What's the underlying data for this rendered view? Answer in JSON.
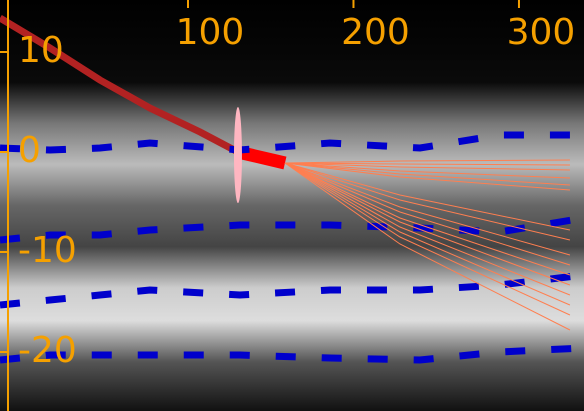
{
  "chart_data": {
    "type": "line",
    "xlim": [
      -13.6,
      339.3
    ],
    "ylim": [
      -25.9,
      15.2
    ],
    "xticks": [
      100,
      200,
      300
    ],
    "yticks": [
      10,
      0,
      -10,
      -20
    ],
    "axis_color": "#f5a000",
    "series": [
      {
        "color": "#b22222",
        "width": 7,
        "dashed": false,
        "x": [
          -13.6,
          16.6,
          46.8,
          77.0,
          107.3,
          130.2
        ],
        "values": [
          13.4,
          10.4,
          7.2,
          4.4,
          2.0,
          0
        ]
      },
      {
        "color": "#ff0000",
        "width": 13,
        "dashed": false,
        "x": [
          130.2,
          158.6
        ],
        "values": [
          0,
          -1.1
        ]
      },
      {
        "color": "#0000cc",
        "width": 7,
        "dashed": true,
        "x": [
          -13.6,
          16.6,
          46.8,
          77.0,
          131.4,
          185.8,
          240.2,
          288.4,
          339.3
        ],
        "values": [
          0.4,
          0.2,
          0.4,
          0.9,
          0.2,
          0.9,
          0.4,
          1.7,
          1.7
        ]
      },
      {
        "color": "#0000cc",
        "width": 7,
        "dashed": true,
        "x": [
          -13.6,
          16.6,
          46.8,
          77.0,
          131.4,
          185.8,
          240.2,
          288.4,
          339.3
        ],
        "values": [
          -8.8,
          -8.3,
          -8.3,
          -7.8,
          -7.3,
          -7.3,
          -7.6,
          -8.0,
          -6.6
        ]
      },
      {
        "color": "#0000cc",
        "width": 7,
        "dashed": true,
        "x": [
          -13.6,
          16.6,
          46.8,
          77.0,
          131.4,
          185.8,
          240.2,
          288.4,
          339.3
        ],
        "values": [
          -15.3,
          -14.8,
          -14.3,
          -13.8,
          -14.3,
          -13.8,
          -13.8,
          -13.3,
          -12.3
        ]
      },
      {
        "color": "#0000cc",
        "width": 7,
        "dashed": true,
        "x": [
          -13.6,
          16.6,
          46.8,
          77.0,
          131.4,
          185.8,
          240.2,
          288.4,
          339.3
        ],
        "values": [
          -20.8,
          -20.3,
          -20.3,
          -20.3,
          -20.3,
          -20.6,
          -20.8,
          -20.0,
          -19.6
        ]
      },
      {
        "color": "#ff7f50",
        "width": 1,
        "dashed": false,
        "x": [
          158.6,
          228.1,
          330.8
        ],
        "values": [
          -1.1,
          -0.9,
          -0.8
        ]
      },
      {
        "color": "#ff7f50",
        "width": 1,
        "dashed": false,
        "x": [
          158.6,
          228.1,
          330.8
        ],
        "values": [
          -1.1,
          -1.2,
          -1.3
        ]
      },
      {
        "color": "#ff7f50",
        "width": 1,
        "dashed": false,
        "x": [
          158.6,
          228.1,
          330.8
        ],
        "values": [
          -1.1,
          -1.5,
          -1.8
        ]
      },
      {
        "color": "#ff7f50",
        "width": 1,
        "dashed": false,
        "x": [
          158.6,
          228.1,
          330.8
        ],
        "values": [
          -1.1,
          -1.9,
          -2.6
        ]
      },
      {
        "color": "#ff7f50",
        "width": 1,
        "dashed": false,
        "x": [
          158.6,
          228.1,
          330.8
        ],
        "values": [
          -1.1,
          -2.2,
          -3.3
        ]
      },
      {
        "color": "#ff7f50",
        "width": 1,
        "dashed": false,
        "x": [
          158.6,
          228.1,
          330.8
        ],
        "values": [
          -1.1,
          -2.5,
          -3.8
        ]
      },
      {
        "color": "#ff7f50",
        "width": 1,
        "dashed": false,
        "x": [
          158.6,
          228.1,
          330.8
        ],
        "values": [
          -1.1,
          -4.3,
          -7.8
        ]
      },
      {
        "color": "#ff7f50",
        "width": 1,
        "dashed": false,
        "x": [
          158.6,
          228.1,
          330.8
        ],
        "values": [
          -1.1,
          -4.8,
          -8.8
        ]
      },
      {
        "color": "#ff7f50",
        "width": 1,
        "dashed": false,
        "x": [
          158.6,
          228.1,
          330.8
        ],
        "values": [
          -1.1,
          -5.5,
          -10.3
        ]
      },
      {
        "color": "#ff7f50",
        "width": 1,
        "dashed": false,
        "x": [
          158.6,
          228.1,
          330.8
        ],
        "values": [
          -1.1,
          -6.0,
          -11.3
        ]
      },
      {
        "color": "#ff7f50",
        "width": 1,
        "dashed": false,
        "x": [
          158.6,
          228.1,
          330.8
        ],
        "values": [
          -1.1,
          -6.6,
          -12.3
        ]
      },
      {
        "color": "#ff7f50",
        "width": 1,
        "dashed": false,
        "x": [
          158.6,
          228.1,
          330.8
        ],
        "values": [
          -1.1,
          -7.0,
          -13.3
        ]
      },
      {
        "color": "#ff7f50",
        "width": 1,
        "dashed": false,
        "x": [
          158.6,
          228.1,
          330.8
        ],
        "values": [
          -1.1,
          -7.5,
          -14.3
        ]
      },
      {
        "color": "#ff7f50",
        "width": 1,
        "dashed": false,
        "x": [
          158.6,
          228.1,
          330.8
        ],
        "values": [
          -1.1,
          -8.0,
          -15.3
        ]
      },
      {
        "color": "#ff7f50",
        "width": 1,
        "dashed": false,
        "x": [
          158.6,
          228.1,
          330.8
        ],
        "values": [
          -1.1,
          -8.5,
          -16.3
        ]
      },
      {
        "color": "#ff7f50",
        "width": 1,
        "dashed": false,
        "x": [
          158.6,
          228.1,
          330.8
        ],
        "values": [
          -1.1,
          -9.2,
          -17.8
        ]
      }
    ],
    "ellipse": {
      "x": 130.2,
      "y": -0.3,
      "rx": 2.4,
      "ry": 4.8,
      "color": "#ffb6c1"
    }
  }
}
